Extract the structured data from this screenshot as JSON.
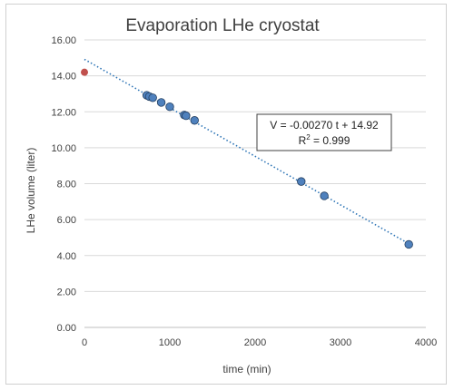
{
  "chart_data": {
    "type": "scatter",
    "title": "Evaporation  LHe cryostat",
    "xlabel": "time (min)",
    "ylabel": "LHe  volume (liter)",
    "xlim": [
      0,
      4000
    ],
    "ylim": [
      0,
      16
    ],
    "xticks": [
      "0",
      "1000",
      "2000",
      "3000",
      "4000"
    ],
    "yticks": [
      "0.00",
      "2.00",
      "4.00",
      "6.00",
      "8.00",
      "10.00",
      "12.00",
      "14.00",
      "16.00"
    ],
    "grid": "horizontal",
    "series": [
      {
        "color": "#4f81bd",
        "x": [
          730,
          760,
          800,
          900,
          1000,
          1170,
          1190,
          1290,
          2540,
          2810,
          3800
        ],
        "y": [
          12.92,
          12.85,
          12.78,
          12.52,
          12.28,
          11.82,
          11.78,
          11.52,
          8.12,
          7.32,
          4.62
        ]
      },
      {
        "color": "#c0504d",
        "x": [
          0
        ],
        "y": [
          14.2
        ]
      }
    ],
    "trendline": {
      "slope": -0.0027,
      "intercept": 14.92,
      "color": "#2e75b6",
      "style": "dotted",
      "x_range": [
        0,
        3800
      ]
    },
    "annotation": {
      "line1": "V = -0.00270 t + 14.92",
      "line2_prefix": "R",
      "line2_sup": "2",
      "line2_suffix": " = 0.999"
    }
  }
}
